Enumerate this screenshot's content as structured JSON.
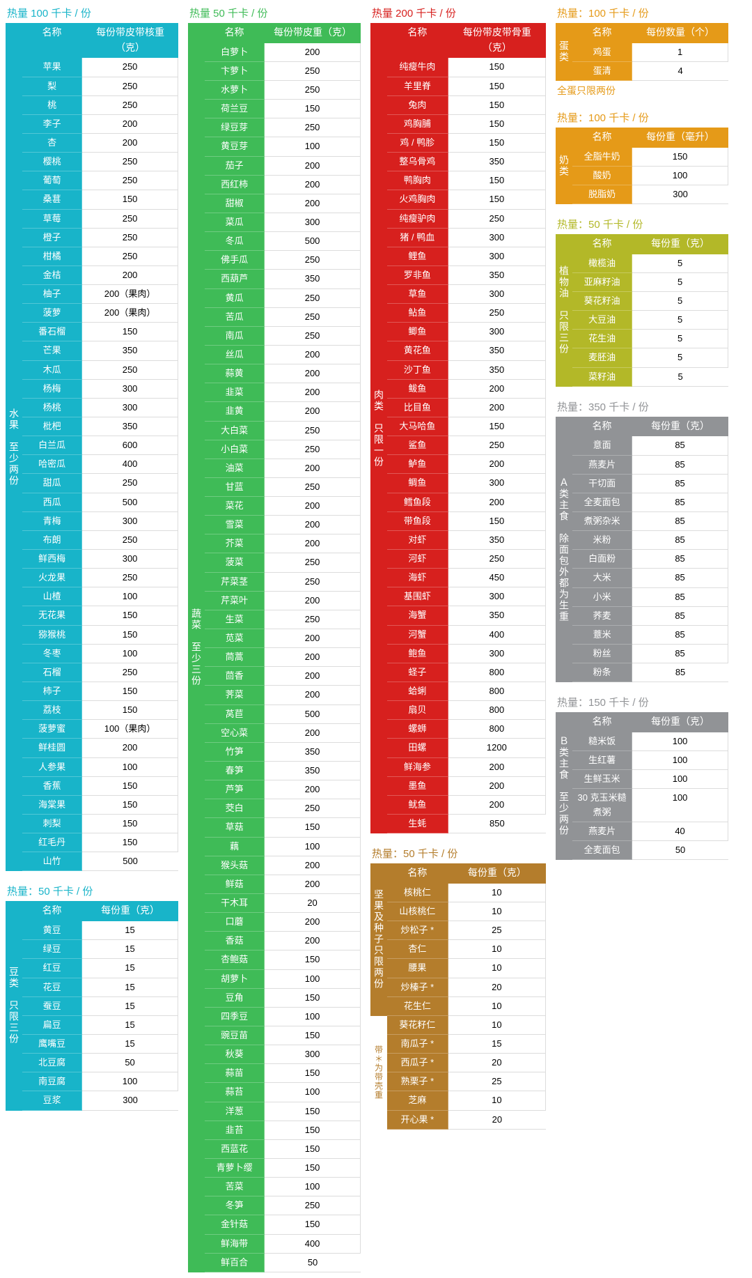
{
  "colors": {
    "teal": "#18b4c9",
    "green": "#3fbb57",
    "red": "#d7201e",
    "orange": "#e59a18",
    "olive": "#b3b828",
    "brown": "#b47d2c",
    "gray": "#919396"
  },
  "sections": {
    "fruit": {
      "column": 1,
      "color": "teal",
      "cal_title": "热量 100 千卡 / 份",
      "sidebar": "水果　至少两份",
      "headers": [
        "名称",
        "每份带皮带核重（克）"
      ],
      "rows": [
        [
          "苹果",
          "250"
        ],
        [
          "梨",
          "250"
        ],
        [
          "桃",
          "250"
        ],
        [
          "李子",
          "200"
        ],
        [
          "杏",
          "200"
        ],
        [
          "樱桃",
          "250"
        ],
        [
          "葡萄",
          "250"
        ],
        [
          "桑葚",
          "150"
        ],
        [
          "草莓",
          "250"
        ],
        [
          "橙子",
          "250"
        ],
        [
          "柑橘",
          "250"
        ],
        [
          "金桔",
          "200"
        ],
        [
          "柚子",
          "200（果肉）"
        ],
        [
          "菠萝",
          "200（果肉）"
        ],
        [
          "番石榴",
          "150"
        ],
        [
          "芒果",
          "350"
        ],
        [
          "木瓜",
          "250"
        ],
        [
          "杨梅",
          "300"
        ],
        [
          "杨桃",
          "300"
        ],
        [
          "枇杷",
          "350"
        ],
        [
          "白兰瓜",
          "600"
        ],
        [
          "哈密瓜",
          "400"
        ],
        [
          "甜瓜",
          "250"
        ],
        [
          "西瓜",
          "500"
        ],
        [
          "青梅",
          "300"
        ],
        [
          "布朗",
          "250"
        ],
        [
          "鲜西梅",
          "300"
        ],
        [
          "火龙果",
          "250"
        ],
        [
          "山楂",
          "100"
        ],
        [
          "无花果",
          "150"
        ],
        [
          "猕猴桃",
          "150"
        ],
        [
          "冬枣",
          "100"
        ],
        [
          "石榴",
          "250"
        ],
        [
          "柿子",
          "150"
        ],
        [
          "荔枝",
          "150"
        ],
        [
          "菠萝蜜",
          "100（果肉）"
        ],
        [
          "鲜桂圆",
          "200"
        ],
        [
          "人参果",
          "100"
        ],
        [
          "香蕉",
          "150"
        ],
        [
          "海棠果",
          "150"
        ],
        [
          "刺梨",
          "150"
        ],
        [
          "红毛丹",
          "150"
        ],
        [
          "山竹",
          "500"
        ]
      ]
    },
    "beans": {
      "column": 1,
      "color": "teal",
      "cal_title": "热量：50 千卡 / 份",
      "sidebar": "豆类　只限三份",
      "headers": [
        "名称",
        "每份重（克）"
      ],
      "rows": [
        [
          "黄豆",
          "15"
        ],
        [
          "绿豆",
          "15"
        ],
        [
          "红豆",
          "15"
        ],
        [
          "花豆",
          "15"
        ],
        [
          "蚕豆",
          "15"
        ],
        [
          "扁豆",
          "15"
        ],
        [
          "鹰嘴豆",
          "15"
        ],
        [
          "北豆腐",
          "50"
        ],
        [
          "南豆腐",
          "100"
        ],
        [
          "豆浆",
          "300"
        ]
      ]
    },
    "veg": {
      "column": 2,
      "color": "green",
      "cal_title": "热量 50 千卡 / 份",
      "sidebar": "蔬菜　至少三份",
      "headers": [
        "名称",
        "每份带皮重（克）"
      ],
      "rows": [
        [
          "白萝卜",
          "200"
        ],
        [
          "卞萝卜",
          "250"
        ],
        [
          "水萝卜",
          "250"
        ],
        [
          "荷兰豆",
          "150"
        ],
        [
          "绿豆芽",
          "250"
        ],
        [
          "黄豆芽",
          "100"
        ],
        [
          "茄子",
          "200"
        ],
        [
          "西红柿",
          "200"
        ],
        [
          "甜椒",
          "200"
        ],
        [
          "菜瓜",
          "300"
        ],
        [
          "冬瓜",
          "500"
        ],
        [
          "佛手瓜",
          "250"
        ],
        [
          "西葫芦",
          "350"
        ],
        [
          "黄瓜",
          "250"
        ],
        [
          "苦瓜",
          "250"
        ],
        [
          "南瓜",
          "250"
        ],
        [
          "丝瓜",
          "200"
        ],
        [
          "蒜黄",
          "200"
        ],
        [
          "韭菜",
          "200"
        ],
        [
          "韭黄",
          "200"
        ],
        [
          "大白菜",
          "250"
        ],
        [
          "小白菜",
          "250"
        ],
        [
          "油菜",
          "200"
        ],
        [
          "甘蓝",
          "250"
        ],
        [
          "菜花",
          "200"
        ],
        [
          "雪菜",
          "200"
        ],
        [
          "芥菜",
          "200"
        ],
        [
          "菠菜",
          "250"
        ],
        [
          "芹菜茎",
          "250"
        ],
        [
          "芹菜叶",
          "200"
        ],
        [
          "生菜",
          "250"
        ],
        [
          "苋菜",
          "200"
        ],
        [
          "茼蒿",
          "200"
        ],
        [
          "茴香",
          "200"
        ],
        [
          "荠菜",
          "200"
        ],
        [
          "莴苣",
          "500"
        ],
        [
          "空心菜",
          "200"
        ],
        [
          "竹笋",
          "350"
        ],
        [
          "春笋",
          "350"
        ],
        [
          "芦笋",
          "200"
        ],
        [
          "茭白",
          "250"
        ],
        [
          "草菇",
          "150"
        ],
        [
          "藕",
          "100"
        ],
        [
          "猴头菇",
          "200"
        ],
        [
          "鲜菇",
          "200"
        ],
        [
          "干木耳",
          "20"
        ],
        [
          "口蘑",
          "200"
        ],
        [
          "香菇",
          "200"
        ],
        [
          "杏鲍菇",
          "150"
        ],
        [
          "胡萝卜",
          "100"
        ],
        [
          "豆角",
          "150"
        ],
        [
          "四季豆",
          "100"
        ],
        [
          "豌豆苗",
          "150"
        ],
        [
          "秋葵",
          "300"
        ],
        [
          "蒜苗",
          "150"
        ],
        [
          "蒜苔",
          "100"
        ],
        [
          "洋葱",
          "150"
        ],
        [
          "韭苔",
          "150"
        ],
        [
          "西蓝花",
          "150"
        ],
        [
          "青萝卜缨",
          "150"
        ],
        [
          "苦菜",
          "100"
        ],
        [
          "冬笋",
          "250"
        ],
        [
          "金针菇",
          "150"
        ],
        [
          "鲜海带",
          "400"
        ],
        [
          "鲜百合",
          "50"
        ]
      ]
    },
    "meat": {
      "column": 3,
      "color": "red",
      "cal_title": "热量 200 千卡 / 份",
      "sidebar": "肉类　只限一份",
      "headers": [
        "名称",
        "每份带皮带骨重（克）"
      ],
      "rows": [
        [
          "纯瘦牛肉",
          "150"
        ],
        [
          "羊里脊",
          "150"
        ],
        [
          "兔肉",
          "150"
        ],
        [
          "鸡胸脯",
          "150"
        ],
        [
          "鸡 / 鸭胗",
          "150"
        ],
        [
          "整乌骨鸡",
          "350"
        ],
        [
          "鸭胸肉",
          "150"
        ],
        [
          "火鸡胸肉",
          "150"
        ],
        [
          "纯瘦驴肉",
          "250"
        ],
        [
          "猪 / 鸭血",
          "300"
        ],
        [
          "鲤鱼",
          "300"
        ],
        [
          "罗非鱼",
          "350"
        ],
        [
          "草鱼",
          "300"
        ],
        [
          "鲇鱼",
          "250"
        ],
        [
          "鲫鱼",
          "300"
        ],
        [
          "黄花鱼",
          "350"
        ],
        [
          "沙丁鱼",
          "350"
        ],
        [
          "鲅鱼",
          "200"
        ],
        [
          "比目鱼",
          "200"
        ],
        [
          "大马哈鱼",
          "150"
        ],
        [
          "鲨鱼",
          "250"
        ],
        [
          "鲈鱼",
          "200"
        ],
        [
          "鲷鱼",
          "300"
        ],
        [
          "鳕鱼段",
          "200"
        ],
        [
          "带鱼段",
          "150"
        ],
        [
          "对虾",
          "350"
        ],
        [
          "河虾",
          "250"
        ],
        [
          "海虾",
          "450"
        ],
        [
          "基围虾",
          "300"
        ],
        [
          "海蟹",
          "350"
        ],
        [
          "河蟹",
          "400"
        ],
        [
          "鲍鱼",
          "300"
        ],
        [
          "蛏子",
          "800"
        ],
        [
          "蛤蜊",
          "800"
        ],
        [
          "扇贝",
          "800"
        ],
        [
          "螺蛳",
          "800"
        ],
        [
          "田螺",
          "1200"
        ],
        [
          "鲜海参",
          "200"
        ],
        [
          "墨鱼",
          "200"
        ],
        [
          "鱿鱼",
          "200"
        ],
        [
          "生蚝",
          "850"
        ]
      ]
    },
    "nuts": {
      "column": 3,
      "color": "brown",
      "cal_title": "热量：50 千卡 / 份",
      "sidebar": "坚果及种子只限两份",
      "headers": [
        "名称",
        "每份重（克）"
      ],
      "footnote": "带＊为带壳重",
      "rows": [
        [
          "核桃仁",
          "10"
        ],
        [
          "山核桃仁",
          "10"
        ],
        [
          "炒松子 *",
          "25"
        ],
        [
          "杏仁",
          "10"
        ],
        [
          "腰果",
          "10"
        ],
        [
          "炒榛子 *",
          "20"
        ],
        [
          "花生仁",
          "10"
        ],
        [
          "葵花籽仁",
          "10"
        ],
        [
          "南瓜子 *",
          "15"
        ],
        [
          "西瓜子 *",
          "20"
        ],
        [
          "熟栗子 *",
          "25"
        ],
        [
          "芝麻",
          "10"
        ],
        [
          "开心果 *",
          "20"
        ]
      ]
    },
    "egg": {
      "column": 4,
      "color": "orange",
      "cal_title": "热量：100 千卡 / 份",
      "sidebar": "蛋类",
      "headers": [
        "名称",
        "每份数量（个）"
      ],
      "note": "全蛋只限两份",
      "rows": [
        [
          "鸡蛋",
          "1"
        ],
        [
          "蛋清",
          "4"
        ]
      ]
    },
    "dairy": {
      "column": 4,
      "color": "orange",
      "cal_title": "热量：100 千卡 / 份",
      "sidebar": "奶类",
      "headers": [
        "名称",
        "每份重（毫升）"
      ],
      "rows": [
        [
          "全脂牛奶",
          "150"
        ],
        [
          "酸奶",
          "100"
        ],
        [
          "脱脂奶",
          "300"
        ]
      ]
    },
    "oil": {
      "column": 4,
      "color": "olive",
      "cal_title": "热量：50 千卡 / 份",
      "sidebar": "植物油　只限三份",
      "headers": [
        "名称",
        "每份重（克）"
      ],
      "rows": [
        [
          "橄榄油",
          "5"
        ],
        [
          "亚麻籽油",
          "5"
        ],
        [
          "葵花籽油",
          "5"
        ],
        [
          "大豆油",
          "5"
        ],
        [
          "花生油",
          "5"
        ],
        [
          "麦胚油",
          "5"
        ],
        [
          "菜籽油",
          "5"
        ]
      ]
    },
    "stapleA": {
      "column": 4,
      "color": "gray",
      "cal_title": "热量：350 千卡 / 份",
      "sidebar": "Ａ类主食　除面包外都为生重",
      "headers": [
        "名称",
        "每份重（克）"
      ],
      "rows": [
        [
          "意面",
          "85"
        ],
        [
          "燕麦片",
          "85"
        ],
        [
          "干切面",
          "85"
        ],
        [
          "全麦面包",
          "85"
        ],
        [
          "煮粥杂米",
          "85"
        ],
        [
          "米粉",
          "85"
        ],
        [
          "白面粉",
          "85"
        ],
        [
          "大米",
          "85"
        ],
        [
          "小米",
          "85"
        ],
        [
          "荞麦",
          "85"
        ],
        [
          "薏米",
          "85"
        ],
        [
          "粉丝",
          "85"
        ],
        [
          "粉条",
          "85"
        ]
      ]
    },
    "stapleB": {
      "column": 4,
      "color": "gray",
      "cal_title": "热量：150 千卡 / 份",
      "sidebar": "Ｂ类主食　至少两份",
      "headers": [
        "名称",
        "每份重（克）"
      ],
      "rows": [
        [
          "糙米饭",
          "100"
        ],
        [
          "生红薯",
          "100"
        ],
        [
          "生鲜玉米",
          "100"
        ],
        [
          "30 克玉米糙煮粥",
          "100"
        ],
        [
          "燕麦片",
          "40"
        ],
        [
          "全麦面包",
          "50"
        ]
      ]
    }
  },
  "column_order": {
    "1": [
      "fruit",
      "beans"
    ],
    "2": [
      "veg"
    ],
    "3": [
      "meat",
      "nuts"
    ],
    "4": [
      "egg",
      "dairy",
      "oil",
      "stapleA",
      "stapleB"
    ]
  }
}
